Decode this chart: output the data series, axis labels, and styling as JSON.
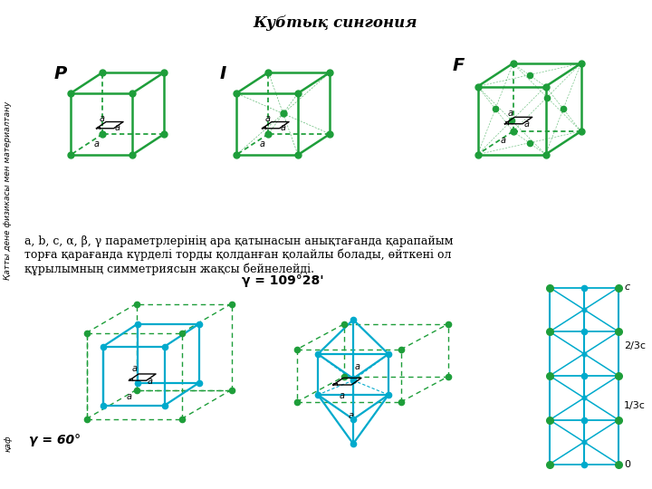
{
  "title": "Кубтық сингония",
  "gc": "#1e9e3a",
  "bc": "#00aacc",
  "bg": "#ffffff",
  "label_P": "P",
  "label_I": "I",
  "label_F": "F",
  "label_gamma60": "γ = 60°",
  "label_gamma109": "γ = 109°28'",
  "label_c": "c",
  "label_23c": "2/3c",
  "label_13c": "1/3c",
  "label_0": "0",
  "side_text": "Қатты дене физикасы мен материалтану",
  "side_text2": "қаф",
  "text1": "a, b, c, α, β, γ параметрлерінің ара қатынасын анықтағанда қарапайым",
  "text2": "торға қарағанда күрделі торды қолданған қолайлы болады, өйткені ол",
  "text3": "құрылымның симметриясын жақсы бейнелейді."
}
